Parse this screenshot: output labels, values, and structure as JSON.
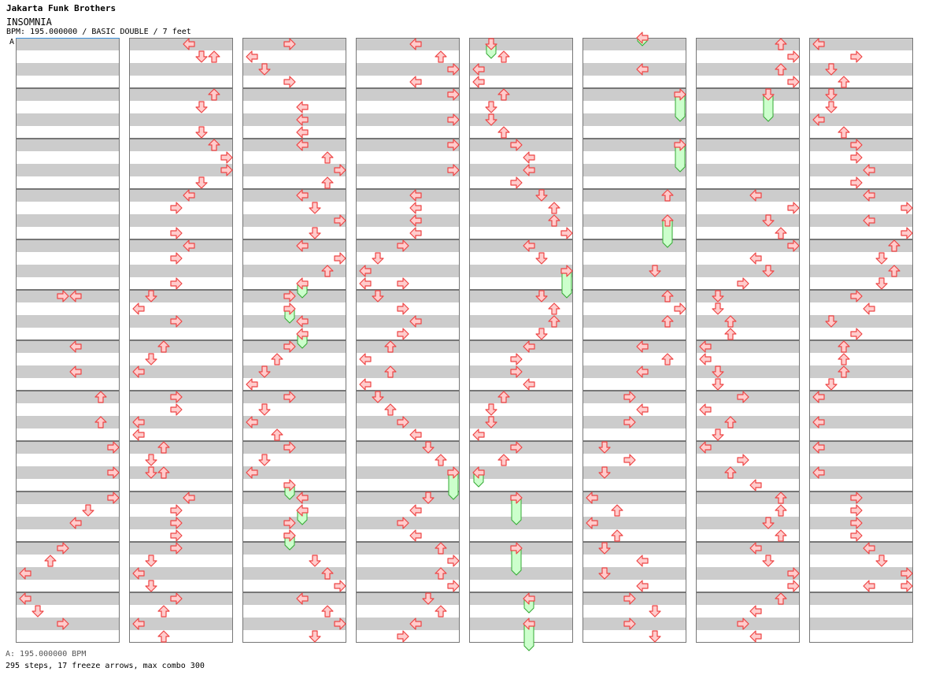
{
  "header": {
    "artist": "Jakarta Funk Brothers",
    "title": "INSOMNIA",
    "info": "BPM: 195.000000 / BASIC DOUBLE / 7 feet"
  },
  "marker": "A",
  "footer": {
    "bpm_text": "A: 195.000000 BPM",
    "stats_text": "295 steps, 17 freeze arrows, max combo 300"
  },
  "colors": {
    "band_gray": "#cccccc",
    "band_white": "#ffffff",
    "border": "#777777",
    "arrow_fill": "#ffcccc",
    "arrow_stroke": "#ee4444",
    "freeze_fill": "#ccffcc",
    "freeze_stroke": "#33aa33",
    "bpm_line": "#3a8fd8"
  },
  "chart": {
    "columns": 8,
    "measures_per_column": 12,
    "lanes": 8
  }
}
